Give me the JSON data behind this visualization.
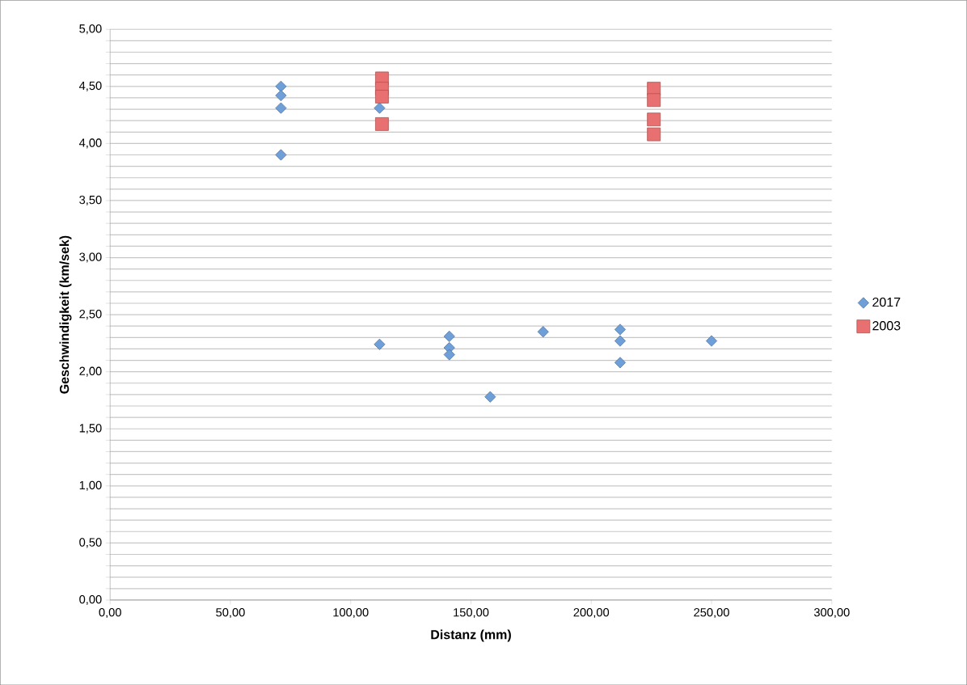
{
  "chart_data": {
    "type": "scatter",
    "xlabel": "Distanz (mm)",
    "ylabel": "Geschwindigkeit (km/sek)",
    "series": [
      {
        "name": "2017",
        "color": "#6f9fd8",
        "marker": "diamond",
        "x": [
          71,
          71,
          71,
          71,
          112,
          112,
          141,
          141,
          141,
          158,
          180,
          212,
          212,
          212,
          250
        ],
        "values": [
          4.5,
          4.42,
          4.31,
          3.9,
          4.31,
          2.24,
          2.31,
          2.21,
          2.15,
          1.78,
          2.35,
          2.37,
          2.27,
          2.08,
          2.27
        ]
      },
      {
        "name": "2003",
        "color": "#e87070",
        "marker": "square",
        "x": [
          113,
          113,
          113,
          113,
          226,
          226,
          226,
          226
        ],
        "values": [
          4.57,
          4.48,
          4.41,
          4.17,
          4.48,
          4.38,
          4.21,
          4.08
        ]
      }
    ],
    "xlim": [
      0,
      300
    ],
    "ylim": [
      0,
      5
    ],
    "xticks": [
      {
        "value": 0,
        "label": "0,00"
      },
      {
        "value": 50,
        "label": "50,00"
      },
      {
        "value": 100,
        "label": "100,00"
      },
      {
        "value": 150,
        "label": "150,00"
      },
      {
        "value": 200,
        "label": "200,00"
      },
      {
        "value": 250,
        "label": "250,00"
      },
      {
        "value": 300,
        "label": "300,00"
      }
    ],
    "yticks": [
      {
        "value": 0,
        "label": "0,00"
      },
      {
        "value": 0.1,
        "label": null
      },
      {
        "value": 0.2,
        "label": null
      },
      {
        "value": 0.3,
        "label": null
      },
      {
        "value": 0.4,
        "label": null
      },
      {
        "value": 0.5,
        "label": "0,50"
      },
      {
        "value": 0.6,
        "label": null
      },
      {
        "value": 0.7,
        "label": null
      },
      {
        "value": 0.8,
        "label": null
      },
      {
        "value": 0.9,
        "label": null
      },
      {
        "value": 1.0,
        "label": "1,00"
      },
      {
        "value": 1.1,
        "label": null
      },
      {
        "value": 1.2,
        "label": null
      },
      {
        "value": 1.3,
        "label": null
      },
      {
        "value": 1.4,
        "label": null
      },
      {
        "value": 1.5,
        "label": "1,50"
      },
      {
        "value": 1.6,
        "label": null
      },
      {
        "value": 1.7,
        "label": null
      },
      {
        "value": 1.8,
        "label": null
      },
      {
        "value": 1.9,
        "label": null
      },
      {
        "value": 2.0,
        "label": "2,00"
      },
      {
        "value": 2.1,
        "label": null
      },
      {
        "value": 2.2,
        "label": null
      },
      {
        "value": 2.3,
        "label": null
      },
      {
        "value": 2.4,
        "label": null
      },
      {
        "value": 2.5,
        "label": "2,50"
      },
      {
        "value": 2.6,
        "label": null
      },
      {
        "value": 2.7,
        "label": null
      },
      {
        "value": 2.8,
        "label": null
      },
      {
        "value": 2.9,
        "label": null
      },
      {
        "value": 3.0,
        "label": "3,00"
      },
      {
        "value": 3.1,
        "label": null
      },
      {
        "value": 3.2,
        "label": null
      },
      {
        "value": 3.3,
        "label": null
      },
      {
        "value": 3.4,
        "label": null
      },
      {
        "value": 3.5,
        "label": "3,50"
      },
      {
        "value": 3.6,
        "label": null
      },
      {
        "value": 3.7,
        "label": null
      },
      {
        "value": 3.8,
        "label": null
      },
      {
        "value": 3.9,
        "label": null
      },
      {
        "value": 4.0,
        "label": "4,00"
      },
      {
        "value": 4.1,
        "label": null
      },
      {
        "value": 4.2,
        "label": null
      },
      {
        "value": 4.3,
        "label": null
      },
      {
        "value": 4.4,
        "label": null
      },
      {
        "value": 4.5,
        "label": "4,50"
      },
      {
        "value": 4.6,
        "label": null
      },
      {
        "value": 4.7,
        "label": null
      },
      {
        "value": 4.8,
        "label": null
      },
      {
        "value": 4.9,
        "label": null
      },
      {
        "value": 5.0,
        "label": "5,00"
      }
    ],
    "grid": "y",
    "legend": "right"
  }
}
